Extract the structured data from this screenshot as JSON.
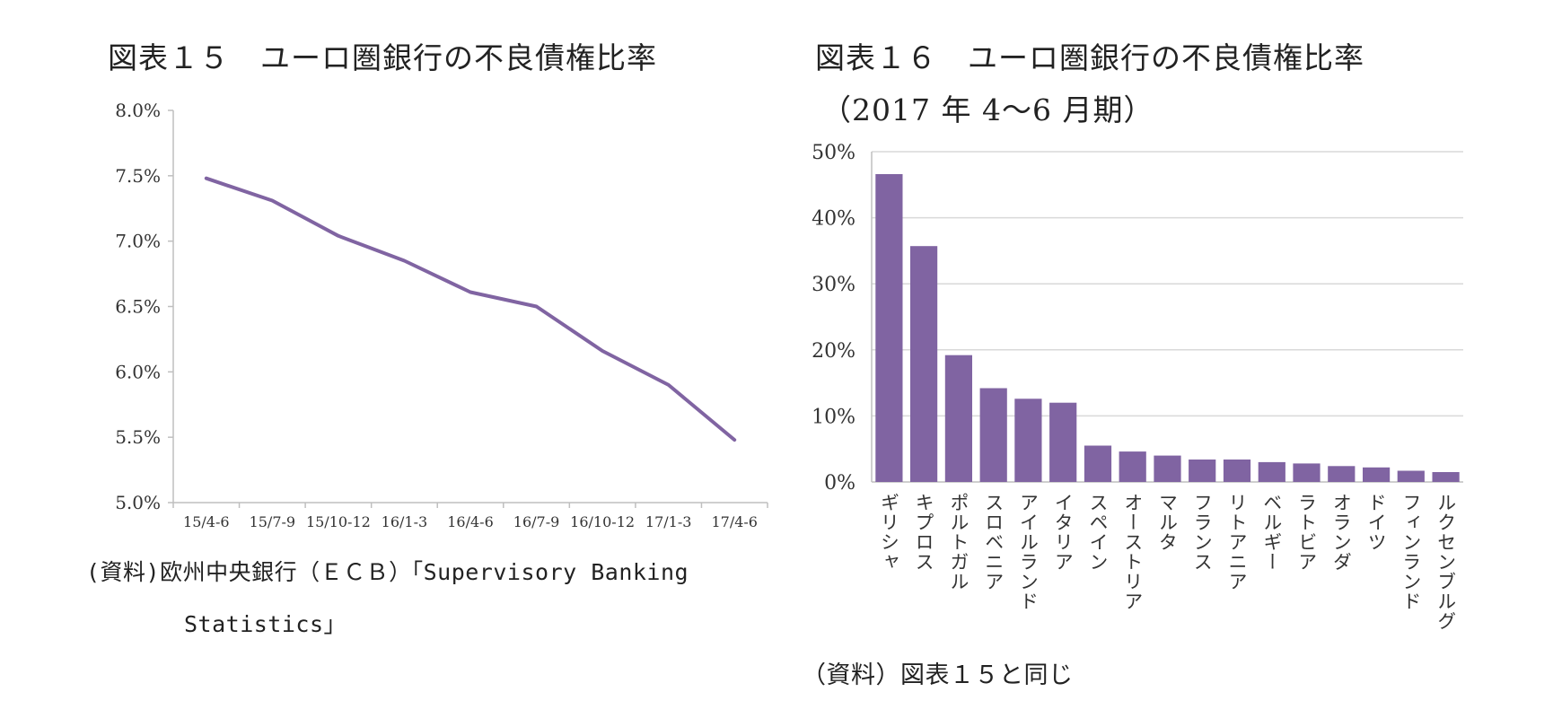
{
  "left_title": "図表１５　ユーロ圏銀行の不良債権比率",
  "right_title": "図表１６　ユーロ圏銀行の不良債権比率",
  "right_subtitle": "（2017 年 4〜6 月期）",
  "left_source_line1": "(資料)欧州中央銀行（ＥＣＢ）「Supervisory Banking",
  "left_source_line2": "Statistics」",
  "right_source": "（資料）図表１５と同じ",
  "colors": {
    "series": "#8064a2",
    "axis": "#bfbfbf",
    "grid": "#d9d9d9"
  },
  "chart_data": [
    {
      "type": "line",
      "title": "図表１５　ユーロ圏銀行の不良債権比率",
      "categories": [
        "15/4-6",
        "15/7-9",
        "15/10-12",
        "16/1-3",
        "16/4-6",
        "16/7-9",
        "16/10-12",
        "17/1-3",
        "17/4-6"
      ],
      "values": [
        7.48,
        7.31,
        7.04,
        6.85,
        6.61,
        6.5,
        6.16,
        5.9,
        5.48
      ],
      "y_ticks": [
        "8.0%",
        "7.5%",
        "7.0%",
        "6.5%",
        "6.0%",
        "5.5%",
        "5.0%"
      ],
      "ylim": [
        5.0,
        8.0
      ],
      "grid": false,
      "legend": "none"
    },
    {
      "type": "bar",
      "title": "図表１６　ユーロ圏銀行の不良債権比率",
      "subtitle": "（2017 年 4〜6 月期）",
      "categories": [
        "ギリシャ",
        "キプロス",
        "ポルトガル",
        "スロベニア",
        "アイルランド",
        "イタリア",
        "スペイン",
        "オーストリア",
        "マルタ",
        "フランス",
        "リトアニア",
        "ベルギー",
        "ラトビア",
        "オランダ",
        "ドイツ",
        "フィンランド",
        "ルクセンブルグ"
      ],
      "values": [
        46.6,
        35.7,
        19.2,
        14.2,
        12.6,
        12.0,
        5.5,
        4.6,
        4.0,
        3.4,
        3.4,
        3.0,
        2.8,
        2.4,
        2.2,
        1.7,
        1.5
      ],
      "y_ticks": [
        "50%",
        "40%",
        "30%",
        "20%",
        "10%",
        "0%"
      ],
      "ylim": [
        0,
        50
      ],
      "grid": true,
      "legend": "none"
    }
  ]
}
